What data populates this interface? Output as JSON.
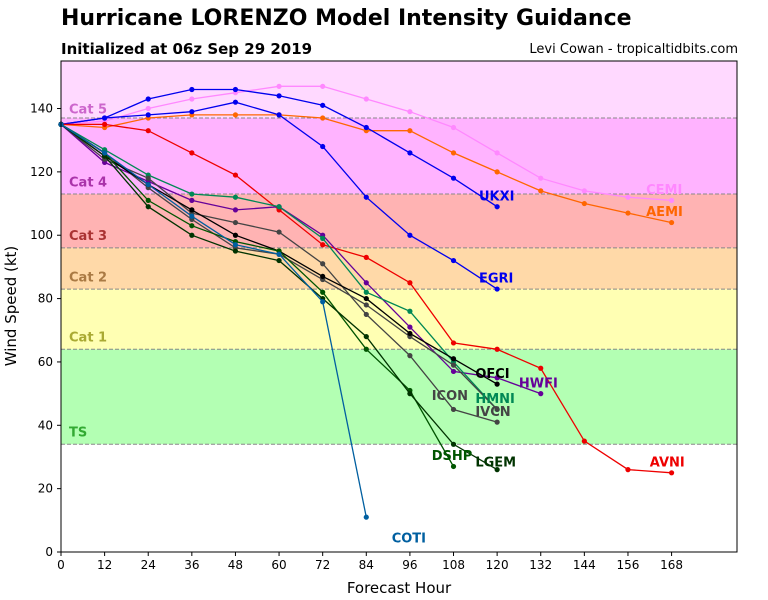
{
  "header": {
    "title": "Hurricane LORENZO Model Intensity Guidance",
    "subtitle": "Initialized at 06z Sep 29 2019",
    "credit": "Levi Cowan - tropicaltidbits.com"
  },
  "chart_data": {
    "type": "line",
    "xlabel": "Forecast Hour",
    "ylabel": "Wind Speed (kt)",
    "xlim": [
      0,
      186
    ],
    "ylim": [
      0,
      155
    ],
    "xticks": [
      0,
      12,
      24,
      36,
      48,
      60,
      72,
      84,
      96,
      108,
      120,
      132,
      144,
      156,
      168
    ],
    "yticks": [
      0,
      20,
      40,
      60,
      80,
      100,
      120,
      140
    ],
    "grid": false,
    "bands": [
      {
        "label": "TS",
        "from": 34,
        "to": 64,
        "color": "#b3ffb3",
        "label_color": "#33aa33",
        "label_y": 38
      },
      {
        "label": "Cat 1",
        "from": 64,
        "to": 83,
        "color": "#ffffb3",
        "label_color": "#aaaa33",
        "label_y": 68
      },
      {
        "label": "Cat 2",
        "from": 83,
        "to": 96,
        "color": "#ffd9a8",
        "label_color": "#aa7a44",
        "label_y": 87
      },
      {
        "label": "Cat 3",
        "from": 96,
        "to": 113,
        "color": "#ffb3b3",
        "label_color": "#aa3333",
        "label_y": 100
      },
      {
        "label": "Cat 4",
        "from": 113,
        "to": 137,
        "color": "#ffb3ff",
        "label_color": "#aa33aa",
        "label_y": 117
      },
      {
        "label": "Cat 5",
        "from": 137,
        "to": 155,
        "color": "#ffd9ff",
        "label_color": "#cc66cc",
        "label_y": 140
      }
    ],
    "series": [
      {
        "name": "CEMI",
        "color": "#ff88ff",
        "x": [
          0,
          12,
          24,
          36,
          48,
          60,
          72,
          84,
          96,
          108,
          120,
          132,
          144,
          156,
          168
        ],
        "values": [
          135,
          136,
          140,
          143,
          145,
          147,
          147,
          143,
          139,
          134,
          126,
          118,
          114,
          112,
          111
        ],
        "label_x": 161,
        "label_y": 113
      },
      {
        "name": "AEMI",
        "color": "#ff6600",
        "x": [
          0,
          12,
          24,
          36,
          48,
          60,
          72,
          84,
          96,
          108,
          120,
          132,
          144,
          156,
          168
        ],
        "values": [
          135,
          134,
          137,
          138,
          138,
          138,
          137,
          133,
          133,
          126,
          120,
          114,
          110,
          107,
          104
        ],
        "label_x": 161,
        "label_y": 106
      },
      {
        "name": "UKXI",
        "color": "#0000ee",
        "x": [
          0,
          12,
          24,
          36,
          48,
          60,
          72,
          84,
          96,
          108,
          120
        ],
        "values": [
          135,
          137,
          143,
          146,
          146,
          144,
          141,
          134,
          126,
          118,
          109
        ],
        "label_x": 115,
        "label_y": 111
      },
      {
        "name": "EGRI",
        "color": "#0000ee",
        "x": [
          0,
          12,
          24,
          36,
          48,
          60,
          72,
          84,
          96,
          108,
          120
        ],
        "values": [
          135,
          137,
          138,
          139,
          142,
          138,
          128,
          112,
          100,
          92,
          83
        ],
        "label_x": 115,
        "label_y": 85
      },
      {
        "name": "AVNI",
        "color": "#ee0000",
        "x": [
          0,
          12,
          24,
          36,
          48,
          60,
          72,
          84,
          96,
          108,
          120,
          132,
          144,
          156,
          168
        ],
        "values": [
          135,
          135,
          133,
          126,
          119,
          108,
          97,
          93,
          85,
          66,
          64,
          58,
          35,
          26,
          25
        ],
        "label_x": 162,
        "label_y": 27
      },
      {
        "name": "HWFI",
        "color": "#660099",
        "x": [
          0,
          12,
          24,
          36,
          48,
          60,
          72,
          84,
          96,
          108,
          120,
          132
        ],
        "values": [
          135,
          123,
          117,
          111,
          108,
          109,
          100,
          85,
          71,
          57,
          55,
          50
        ],
        "label_x": 126,
        "label_y": 52
      },
      {
        "name": "HMNI",
        "color": "#008855",
        "x": [
          0,
          12,
          24,
          36,
          48,
          60,
          72,
          84,
          96,
          108,
          120
        ],
        "values": [
          135,
          127,
          119,
          113,
          112,
          109,
          99,
          82,
          76,
          60,
          45
        ],
        "label_x": 114,
        "label_y": 47
      },
      {
        "name": "ICON",
        "color": "#444444",
        "x": [
          0,
          12,
          24,
          36,
          48,
          60,
          72,
          84,
          96,
          108,
          120
        ],
        "values": [
          135,
          124,
          118,
          107,
          104,
          101,
          91,
          75,
          62,
          45,
          41
        ],
        "label_x": 102,
        "label_y": 48
      },
      {
        "name": "IVCN",
        "color": "#444444",
        "x": [
          0,
          12,
          24,
          36,
          48,
          60,
          72,
          84,
          96,
          108,
          120
        ],
        "values": [
          135,
          126,
          115,
          105,
          96,
          94,
          86,
          78,
          68,
          59,
          45
        ],
        "label_x": 114,
        "label_y": 43
      },
      {
        "name": "OFCI",
        "color": "#000000",
        "x": [
          0,
          12,
          24,
          36,
          48,
          60,
          72,
          84,
          96,
          108,
          120
        ],
        "values": [
          135,
          125,
          116,
          108,
          100,
          95,
          87,
          80,
          69,
          61,
          53
        ],
        "label_x": 114,
        "label_y": 55
      },
      {
        "name": "DSHP",
        "color": "#005500",
        "x": [
          0,
          12,
          24,
          36,
          48,
          60,
          72,
          84,
          96,
          108
        ],
        "values": [
          135,
          126,
          111,
          103,
          98,
          95,
          82,
          64,
          51,
          27
        ],
        "label_x": 102,
        "label_y": 29
      },
      {
        "name": "LGEM",
        "color": "#003300",
        "x": [
          0,
          12,
          24,
          36,
          48,
          60,
          72,
          84,
          96,
          108,
          120
        ],
        "values": [
          135,
          125,
          109,
          100,
          95,
          92,
          80,
          68,
          50,
          34,
          26
        ],
        "label_x": 114,
        "label_y": 27
      },
      {
        "name": "COTI",
        "color": "#005fa0",
        "x": [
          0,
          12,
          24,
          36,
          48,
          60,
          72,
          84
        ],
        "values": [
          135,
          126,
          116,
          106,
          97,
          94,
          79,
          11
        ],
        "label_x": 91,
        "label_y": 3
      }
    ]
  }
}
